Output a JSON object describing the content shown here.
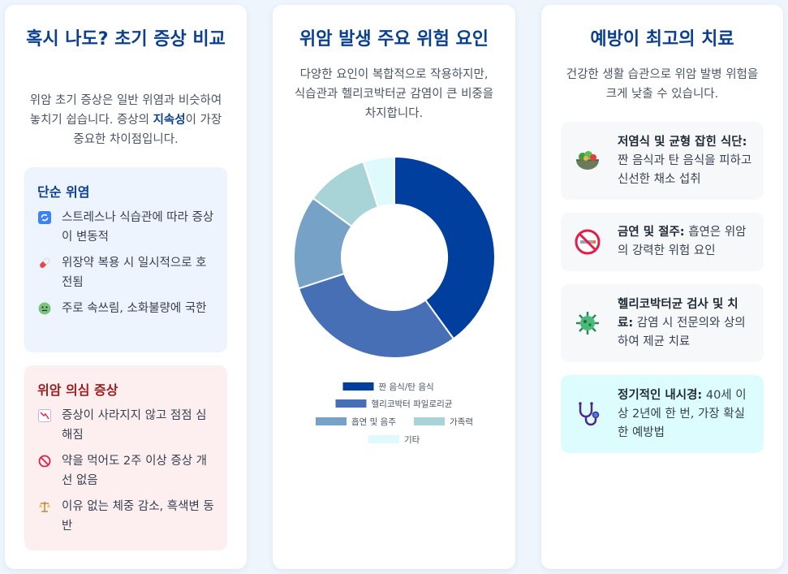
{
  "card1": {
    "title": "혹시 나도? 초기 증상 비교",
    "desc_prefix": "위암 초기 증상은 일반 위염과 비슷하여 놓치기 쉽습니다. 증상의 ",
    "desc_highlight": "지속성",
    "desc_suffix": "이 가장 중요한 차이점입니다.",
    "simple": {
      "title": "단순 위염",
      "items": [
        {
          "icon": "refresh-icon",
          "text": "스트레스나 식습관에 따라 증상이 변동적"
        },
        {
          "icon": "pill-icon",
          "text": "위장약 복용 시 일시적으로 호전됨"
        },
        {
          "icon": "sick-face-icon",
          "text": "주로 속쓰림, 소화불량에 국한"
        }
      ]
    },
    "cancer": {
      "title": "위암 의심 증상",
      "items": [
        {
          "icon": "trend-down-icon",
          "text": "증상이 사라지지 않고 점점 심해짐"
        },
        {
          "icon": "prohibited-icon",
          "text": "약을 먹어도 2주 이상 증상 개선 없음"
        },
        {
          "icon": "scale-icon",
          "text": "이유 없는 체중 감소, 흑색변 동반"
        }
      ]
    }
  },
  "card2": {
    "title": "위암 발생 주요 위험 요인",
    "desc": "다양한 요인이 복합적으로 작용하지만, 식습관과 헬리코박터균 감염이 큰 비중을 차지합니다."
  },
  "chart_data": {
    "type": "pie",
    "categories": [
      "짠 음식/탄 음식",
      "헬리코박터 파일로리균",
      "흡연 및 음주",
      "가족력",
      "기타"
    ],
    "values": [
      40,
      30,
      15,
      10,
      5
    ],
    "colors": [
      "#003f9e",
      "#466fb5",
      "#76a2c7",
      "#a8d4d8",
      "#dffafd"
    ],
    "legend": "bottom",
    "donut": true
  },
  "card3": {
    "title": "예방이 최고의 치료",
    "desc": "건강한 생활 습관으로 위암 발병 위험을 크게 낮출 수 있습니다.",
    "tips": [
      {
        "icon": "salad-icon",
        "bold": "저염식 및 균형 잡힌 식단:",
        "text": " 짠 음식과 탄 음식을 피하고 신선한 채소 섭취"
      },
      {
        "icon": "no-smoking-icon",
        "bold": "금연 및 절주:",
        "text": " 흡연은 위암의 강력한 위험 요인"
      },
      {
        "icon": "microbe-icon",
        "bold": "헬리코박터균 검사 및 치료:",
        "text": " 감염 시 전문의와 상의하여 제균 치료"
      },
      {
        "icon": "stethoscope-icon",
        "bold": "정기적인 내시경:",
        "text": " 40세 이상 2년에 한 번, 가장 확실한 예방법"
      }
    ]
  }
}
